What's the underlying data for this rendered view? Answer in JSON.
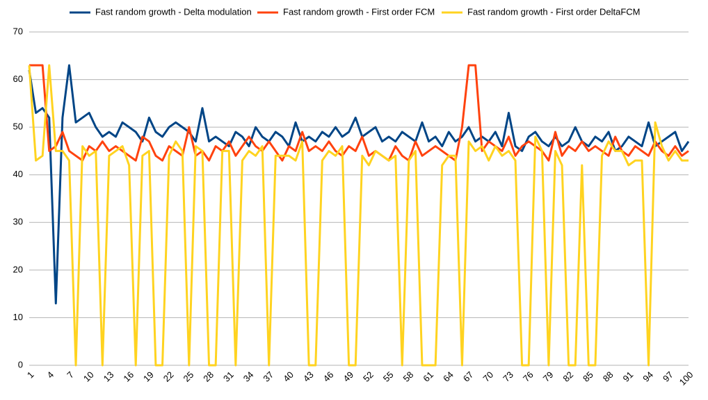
{
  "chart_data": {
    "type": "line",
    "categories": [
      1,
      null,
      null,
      4,
      null,
      null,
      7,
      null,
      null,
      10,
      null,
      null,
      13,
      null,
      null,
      16,
      null,
      null,
      19,
      null,
      null,
      22,
      null,
      null,
      25,
      null,
      null,
      28,
      null,
      null,
      31,
      null,
      null,
      34,
      null,
      null,
      37,
      null,
      null,
      40,
      null,
      null,
      43,
      null,
      null,
      46,
      null,
      null,
      49,
      null,
      null,
      52,
      null,
      null,
      55,
      null,
      null,
      58,
      null,
      null,
      61,
      null,
      null,
      64,
      null,
      null,
      67,
      null,
      null,
      70,
      null,
      null,
      73,
      null,
      null,
      76,
      null,
      null,
      79,
      null,
      null,
      82,
      null,
      null,
      85,
      null,
      null,
      88,
      null,
      null,
      91,
      null,
      null,
      94,
      null,
      null,
      97,
      null,
      null,
      100
    ],
    "series": [
      {
        "name": "Fast random growth - Delta modulation",
        "color": "#004586",
        "values": [
          62,
          53,
          54,
          52,
          13,
          52,
          63,
          51,
          52,
          53,
          50,
          48,
          49,
          48,
          51,
          50,
          49,
          47,
          52,
          49,
          48,
          50,
          51,
          50,
          49,
          47,
          54,
          47,
          48,
          47,
          46,
          49,
          48,
          46,
          50,
          48,
          47,
          49,
          48,
          46,
          51,
          47,
          48,
          47,
          49,
          48,
          50,
          48,
          49,
          52,
          48,
          49,
          50,
          47,
          48,
          47,
          49,
          48,
          47,
          51,
          47,
          48,
          46,
          49,
          47,
          48,
          50,
          47,
          48,
          47,
          49,
          46,
          53,
          46,
          45,
          48,
          49,
          47,
          46,
          48,
          46,
          47,
          50,
          47,
          46,
          48,
          47,
          49,
          45,
          46,
          48,
          47,
          46,
          51,
          46,
          47,
          48,
          49,
          45,
          47
        ]
      },
      {
        "name": "Fast random growth - First order FCM",
        "color": "#ff420e",
        "values": [
          63,
          63,
          63,
          45,
          46,
          49,
          45,
          44,
          43,
          46,
          45,
          47,
          45,
          46,
          45,
          44,
          43,
          48,
          47,
          44,
          43,
          46,
          45,
          44,
          50,
          44,
          45,
          43,
          46,
          45,
          47,
          44,
          46,
          48,
          46,
          45,
          47,
          45,
          43,
          46,
          45,
          49,
          45,
          46,
          45,
          47,
          45,
          44,
          46,
          45,
          48,
          44,
          45,
          44,
          43,
          46,
          44,
          43,
          47,
          44,
          45,
          46,
          45,
          44,
          43,
          50,
          63,
          63,
          45,
          47,
          46,
          45,
          48,
          44,
          46,
          47,
          46,
          45,
          43,
          49,
          44,
          46,
          45,
          47,
          45,
          46,
          45,
          44,
          48,
          45,
          44,
          46,
          45,
          44,
          47,
          45,
          44,
          46,
          44,
          45
        ]
      },
      {
        "name": "Fast random growth - First order DeltaFCM",
        "color": "#ffd320",
        "values": [
          63,
          43,
          44,
          63,
          45,
          45,
          43,
          0,
          46,
          44,
          45,
          0,
          44,
          45,
          46,
          42,
          0,
          44,
          45,
          0,
          0,
          44,
          47,
          45,
          0,
          46,
          45,
          0,
          0,
          45,
          45,
          0,
          43,
          45,
          44,
          46,
          0,
          44,
          44,
          44,
          43,
          47,
          0,
          0,
          43,
          45,
          44,
          46,
          0,
          0,
          44,
          42,
          45,
          44,
          43,
          44,
          0,
          43,
          45,
          0,
          0,
          0,
          42,
          44,
          44,
          0,
          47,
          45,
          46,
          43,
          46,
          44,
          45,
          43,
          0,
          0,
          48,
          45,
          0,
          45,
          42,
          0,
          0,
          42,
          0,
          0,
          44,
          47,
          45,
          45,
          42,
          43,
          43,
          0,
          51,
          46,
          43,
          45,
          43,
          43
        ]
      }
    ],
    "ylim": [
      0,
      70
    ],
    "yticks": [
      0,
      10,
      20,
      30,
      40,
      50,
      60,
      70
    ],
    "grid": true,
    "legend": "top"
  }
}
